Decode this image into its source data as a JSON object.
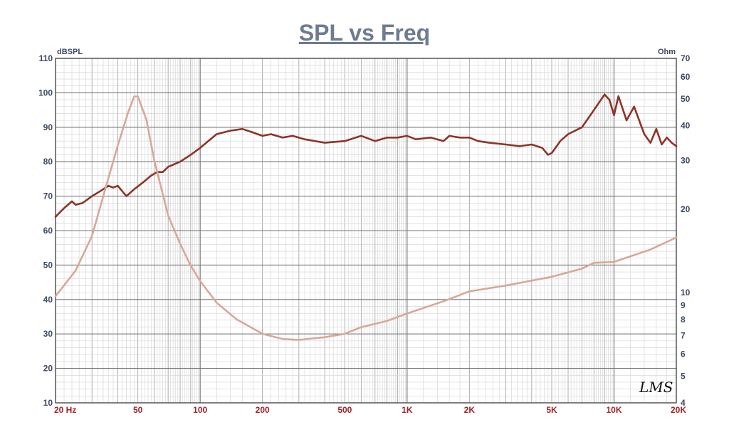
{
  "chart_data": {
    "type": "line",
    "title": "SPL vs Freq",
    "x_scale": "log",
    "xlim": [
      20,
      20000
    ],
    "x_ticks": [
      {
        "value": 20,
        "label": "20  Hz"
      },
      {
        "value": 50,
        "label": "50"
      },
      {
        "value": 100,
        "label": "100"
      },
      {
        "value": 200,
        "label": "200"
      },
      {
        "value": 500,
        "label": "500"
      },
      {
        "value": 1000,
        "label": "1K"
      },
      {
        "value": 2000,
        "label": "2K"
      },
      {
        "value": 5000,
        "label": "5K"
      },
      {
        "value": 10000,
        "label": "10K"
      },
      {
        "value": 20000,
        "label": "20K"
      }
    ],
    "y_left": {
      "unit": "dBSPL",
      "ylim": [
        10,
        110
      ],
      "ticks": [
        110,
        100,
        90,
        80,
        70,
        60,
        50,
        40,
        30,
        20,
        10
      ]
    },
    "y_right": {
      "unit": "Ohm",
      "scale": "log",
      "ylim": [
        4,
        70
      ],
      "ticks": [
        70,
        60,
        50,
        40,
        30,
        20,
        10,
        9,
        8,
        7,
        6,
        5,
        4
      ]
    },
    "grid": true,
    "watermark": "LMS",
    "series": [
      {
        "axis": "left",
        "color": "#8e3428",
        "points": [
          [
            20,
            64
          ],
          [
            22,
            66.5
          ],
          [
            24,
            68.5
          ],
          [
            25,
            67.5
          ],
          [
            27,
            68
          ],
          [
            30,
            70
          ],
          [
            33,
            71.5
          ],
          [
            36,
            73
          ],
          [
            38,
            72.5
          ],
          [
            40,
            73
          ],
          [
            44,
            70
          ],
          [
            48,
            72
          ],
          [
            53,
            74
          ],
          [
            58,
            76
          ],
          [
            62,
            77
          ],
          [
            66,
            77
          ],
          [
            70,
            78.5
          ],
          [
            80,
            80
          ],
          [
            90,
            82
          ],
          [
            100,
            84
          ],
          [
            120,
            88
          ],
          [
            140,
            89
          ],
          [
            160,
            89.5
          ],
          [
            180,
            88.5
          ],
          [
            200,
            87.5
          ],
          [
            220,
            88
          ],
          [
            250,
            87
          ],
          [
            280,
            87.5
          ],
          [
            320,
            86.5
          ],
          [
            400,
            85.5
          ],
          [
            500,
            86
          ],
          [
            600,
            87.5
          ],
          [
            700,
            86
          ],
          [
            800,
            87
          ],
          [
            900,
            87
          ],
          [
            1000,
            87.5
          ],
          [
            1100,
            86.5
          ],
          [
            1300,
            87
          ],
          [
            1500,
            86
          ],
          [
            1600,
            87.5
          ],
          [
            1800,
            87
          ],
          [
            2000,
            87
          ],
          [
            2200,
            86
          ],
          [
            2500,
            85.5
          ],
          [
            3000,
            85
          ],
          [
            3500,
            84.5
          ],
          [
            4000,
            85
          ],
          [
            4500,
            84
          ],
          [
            4800,
            82
          ],
          [
            5000,
            82.5
          ],
          [
            5500,
            86
          ],
          [
            6000,
            88
          ],
          [
            7000,
            90
          ],
          [
            8000,
            95
          ],
          [
            9000,
            99.5
          ],
          [
            9500,
            98
          ],
          [
            10000,
            93.5
          ],
          [
            10500,
            99
          ],
          [
            11500,
            92
          ],
          [
            12500,
            96
          ],
          [
            14000,
            88
          ],
          [
            15000,
            85.5
          ],
          [
            16000,
            89.5
          ],
          [
            17000,
            85
          ],
          [
            18000,
            87
          ],
          [
            19000,
            85.5
          ],
          [
            20000,
            84.5
          ]
        ]
      },
      {
        "axis": "right",
        "color": "#d8a898",
        "points": [
          [
            20,
            9.7
          ],
          [
            25,
            12
          ],
          [
            30,
            16
          ],
          [
            35,
            24
          ],
          [
            40,
            34
          ],
          [
            45,
            45
          ],
          [
            48,
            51
          ],
          [
            50,
            51
          ],
          [
            55,
            42
          ],
          [
            60,
            30
          ],
          [
            70,
            19
          ],
          [
            80,
            15
          ],
          [
            90,
            12.5
          ],
          [
            100,
            11
          ],
          [
            120,
            9.2
          ],
          [
            150,
            8
          ],
          [
            200,
            7.1
          ],
          [
            250,
            6.8
          ],
          [
            300,
            6.75
          ],
          [
            400,
            6.9
          ],
          [
            500,
            7.1
          ],
          [
            600,
            7.5
          ],
          [
            800,
            7.9
          ],
          [
            1000,
            8.4
          ],
          [
            1500,
            9.3
          ],
          [
            2000,
            10.1
          ],
          [
            3000,
            10.6
          ],
          [
            5000,
            11.4
          ],
          [
            7000,
            12.2
          ],
          [
            8000,
            12.8
          ],
          [
            10000,
            12.9
          ],
          [
            15000,
            14.3
          ],
          [
            20000,
            15.8
          ]
        ]
      }
    ]
  }
}
